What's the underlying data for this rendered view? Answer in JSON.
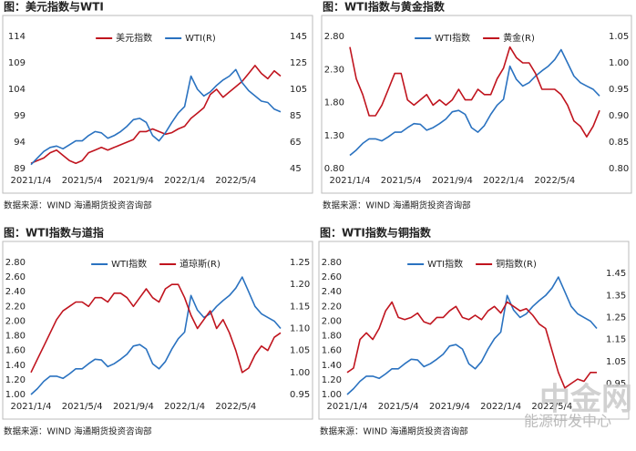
{
  "chart_data": [
    {
      "type": "line",
      "title": "图：美元指数与WTI",
      "note": "数据来源：WIND   海通期货投资咨询部",
      "xticks": [
        {
          "value": 0,
          "label": "2021/1/4"
        },
        {
          "value": 8,
          "label": "2021/5/4"
        },
        {
          "value": 16,
          "label": "2021/9/4"
        },
        {
          "value": 24,
          "label": "2022/1/4"
        },
        {
          "value": 32,
          "label": "2022/5/4"
        }
      ],
      "xlim": [
        0,
        39
      ],
      "ylim": [
        89,
        114
      ],
      "yticks": [
        89,
        94,
        99,
        104,
        109,
        114
      ],
      "y2lim": [
        45,
        145
      ],
      "y2ticks": [
        45,
        65,
        85,
        105,
        125,
        145
      ],
      "series": [
        {
          "name": "美元指数",
          "color": "#c0141e",
          "values": [
            90.0,
            90.5,
            91.0,
            92.0,
            92.5,
            91.5,
            90.5,
            90.0,
            90.5,
            92.0,
            92.5,
            93.0,
            92.5,
            93.0,
            93.5,
            94.0,
            94.5,
            96.0,
            96.0,
            96.5,
            96.0,
            95.5,
            95.8,
            96.5,
            97.0,
            98.5,
            99.5,
            100.5,
            103.0,
            104.0,
            102.5,
            103.5,
            104.5,
            105.5,
            107.0,
            108.5,
            107.0,
            106.0,
            107.5,
            106.5
          ]
        },
        {
          "name": "WTI(R)",
          "color": "#2a72c0",
          "axis": "y2",
          "values": [
            48,
            53,
            58,
            61,
            62,
            60,
            63,
            66,
            66,
            70,
            73,
            72,
            68,
            70,
            73,
            77,
            82,
            83,
            80,
            70,
            66,
            72,
            80,
            87,
            92,
            115,
            105,
            100,
            103,
            108,
            112,
            115,
            120,
            110,
            104,
            100,
            96,
            95,
            90,
            88
          ]
        }
      ]
    },
    {
      "type": "line",
      "title": "图：WTI指数与黄金指数",
      "note": "数据来源：WIND   海通期货投资咨询部",
      "xticks": [
        {
          "value": 0,
          "label": "2021/1/4"
        },
        {
          "value": 8,
          "label": "2021/5/4"
        },
        {
          "value": 16,
          "label": "2021/9/4"
        },
        {
          "value": 24,
          "label": "2022/1/4"
        },
        {
          "value": 32,
          "label": "2022/5/4"
        }
      ],
      "xlim": [
        0,
        39
      ],
      "ylim": [
        0.8,
        2.8
      ],
      "yticks": [
        {
          "value": 0.8,
          "label": "0.80"
        },
        {
          "value": 1.3,
          "label": "1.30"
        },
        {
          "value": 1.8,
          "label": "1.80"
        },
        {
          "value": 2.3,
          "label": "2.30"
        },
        {
          "value": 2.8,
          "label": "2.80"
        }
      ],
      "y2lim": [
        0.8,
        1.05
      ],
      "y2ticks": [
        {
          "value": 0.8,
          "label": "0.80"
        },
        {
          "value": 0.85,
          "label": "0.85"
        },
        {
          "value": 0.9,
          "label": "0.90"
        },
        {
          "value": 0.95,
          "label": "0.95"
        },
        {
          "value": 1,
          "label": "1.00"
        },
        {
          "value": 1.05,
          "label": "1.05"
        }
      ],
      "series": [
        {
          "name": "WTI指数",
          "color": "#2a72c0",
          "values": [
            1.0,
            1.08,
            1.18,
            1.25,
            1.25,
            1.22,
            1.28,
            1.35,
            1.35,
            1.42,
            1.48,
            1.47,
            1.38,
            1.42,
            1.48,
            1.55,
            1.66,
            1.68,
            1.62,
            1.42,
            1.35,
            1.45,
            1.62,
            1.76,
            1.85,
            2.35,
            2.15,
            2.05,
            2.1,
            2.2,
            2.28,
            2.35,
            2.45,
            2.6,
            2.4,
            2.2,
            2.1,
            2.05,
            2.0,
            1.9
          ]
        },
        {
          "name": "黄金(R)",
          "color": "#c0141e",
          "axis": "y2",
          "values": [
            1.03,
            0.97,
            0.94,
            0.9,
            0.9,
            0.92,
            0.95,
            0.98,
            0.98,
            0.93,
            0.92,
            0.93,
            0.94,
            0.92,
            0.93,
            0.92,
            0.93,
            0.95,
            0.93,
            0.93,
            0.95,
            0.94,
            0.94,
            0.97,
            0.99,
            1.03,
            1.01,
            1.0,
            1.0,
            0.98,
            0.95,
            0.95,
            0.95,
            0.94,
            0.92,
            0.89,
            0.88,
            0.86,
            0.88,
            0.91
          ]
        }
      ]
    },
    {
      "type": "line",
      "title": "图：WTI指数与道指",
      "note": "数据来源：WIND   海通期货投资咨询部",
      "xticks": [
        {
          "value": 0,
          "label": "2021/1/4"
        },
        {
          "value": 8,
          "label": "2021/5/4"
        },
        {
          "value": 16,
          "label": "2021/9/4"
        },
        {
          "value": 24,
          "label": "2022/1/4"
        },
        {
          "value": 32,
          "label": "2022/5/4"
        }
      ],
      "xlim": [
        0,
        39
      ],
      "ylim": [
        1,
        2.8
      ],
      "yticks": [
        {
          "value": 1,
          "label": "1.00"
        },
        {
          "value": 1.2,
          "label": "1.20"
        },
        {
          "value": 1.4,
          "label": "1.40"
        },
        {
          "value": 1.6,
          "label": "1.60"
        },
        {
          "value": 1.8,
          "label": "1.80"
        },
        {
          "value": 2,
          "label": "2.00"
        },
        {
          "value": 2.2,
          "label": "2.20"
        },
        {
          "value": 2.4,
          "label": "2.40"
        },
        {
          "value": 2.6,
          "label": "2.60"
        },
        {
          "value": 2.8,
          "label": "2.80"
        }
      ],
      "y2lim": [
        0.95,
        1.25
      ],
      "y2ticks": [
        {
          "value": 0.95,
          "label": "0.95"
        },
        {
          "value": 1,
          "label": "1.00"
        },
        {
          "value": 1.05,
          "label": "1.05"
        },
        {
          "value": 1.1,
          "label": "1.10"
        },
        {
          "value": 1.15,
          "label": "1.15"
        },
        {
          "value": 1.2,
          "label": "1.20"
        },
        {
          "value": 1.25,
          "label": "1.25"
        }
      ],
      "series": [
        {
          "name": "WTI指数",
          "color": "#2a72c0",
          "values": [
            1.0,
            1.08,
            1.18,
            1.25,
            1.25,
            1.22,
            1.28,
            1.35,
            1.35,
            1.42,
            1.48,
            1.47,
            1.38,
            1.42,
            1.48,
            1.55,
            1.66,
            1.68,
            1.62,
            1.42,
            1.35,
            1.45,
            1.62,
            1.76,
            1.85,
            2.35,
            2.15,
            2.05,
            2.1,
            2.2,
            2.28,
            2.35,
            2.45,
            2.6,
            2.4,
            2.2,
            2.1,
            2.05,
            2.0,
            1.9
          ]
        },
        {
          "name": "道琼斯(R)",
          "color": "#c0141e",
          "axis": "y2",
          "values": [
            1.0,
            1.03,
            1.06,
            1.09,
            1.12,
            1.14,
            1.15,
            1.16,
            1.16,
            1.15,
            1.17,
            1.17,
            1.16,
            1.18,
            1.18,
            1.17,
            1.15,
            1.17,
            1.19,
            1.17,
            1.16,
            1.19,
            1.2,
            1.2,
            1.17,
            1.13,
            1.1,
            1.12,
            1.14,
            1.1,
            1.12,
            1.09,
            1.05,
            1.0,
            1.01,
            1.04,
            1.06,
            1.05,
            1.08,
            1.09
          ]
        }
      ]
    },
    {
      "type": "line",
      "title": "图：WTI指数与铜指数",
      "note": "数据来源：WIND   海通期货投资咨询部",
      "xticks": [
        {
          "value": 0,
          "label": "2021/1/4"
        },
        {
          "value": 8,
          "label": "2021/5/4"
        },
        {
          "value": 16,
          "label": "2021/9/4"
        },
        {
          "value": 24,
          "label": "2022/1/4"
        },
        {
          "value": 32,
          "label": "2022/5/4"
        }
      ],
      "xlim": [
        0,
        39
      ],
      "ylim": [
        1,
        2.8
      ],
      "yticks": [
        {
          "value": 1,
          "label": "1.00"
        },
        {
          "value": 1.2,
          "label": "1.20"
        },
        {
          "value": 1.4,
          "label": "1.40"
        },
        {
          "value": 1.6,
          "label": "1.60"
        },
        {
          "value": 1.8,
          "label": "1.80"
        },
        {
          "value": 2,
          "label": "2.00"
        },
        {
          "value": 2.2,
          "label": "2.20"
        },
        {
          "value": 2.4,
          "label": "2.40"
        },
        {
          "value": 2.6,
          "label": "2.60"
        },
        {
          "value": 2.8,
          "label": "2.80"
        }
      ],
      "y2lim": [
        0.9,
        1.5
      ],
      "y2ticks": [
        {
          "value": 0.95,
          "label": "0.95"
        },
        {
          "value": 1.05,
          "label": "1.05"
        },
        {
          "value": 1.15,
          "label": "1.15"
        },
        {
          "value": 1.25,
          "label": "1.25"
        },
        {
          "value": 1.35,
          "label": "1.35"
        },
        {
          "value": 1.45,
          "label": "1.45"
        }
      ],
      "series": [
        {
          "name": "WTI指数",
          "color": "#2a72c0",
          "values": [
            1.0,
            1.08,
            1.18,
            1.25,
            1.25,
            1.22,
            1.28,
            1.35,
            1.35,
            1.42,
            1.48,
            1.47,
            1.38,
            1.42,
            1.48,
            1.55,
            1.66,
            1.68,
            1.62,
            1.42,
            1.35,
            1.45,
            1.62,
            1.76,
            1.85,
            2.35,
            2.15,
            2.05,
            2.1,
            2.2,
            2.28,
            2.35,
            2.45,
            2.6,
            2.4,
            2.2,
            2.1,
            2.05,
            2.0,
            1.9
          ]
        },
        {
          "name": "铜指数(R)",
          "color": "#c0141e",
          "axis": "y2",
          "values": [
            1.0,
            1.02,
            1.15,
            1.18,
            1.15,
            1.2,
            1.28,
            1.32,
            1.25,
            1.24,
            1.25,
            1.27,
            1.23,
            1.22,
            1.25,
            1.25,
            1.28,
            1.3,
            1.25,
            1.24,
            1.26,
            1.24,
            1.28,
            1.3,
            1.27,
            1.32,
            1.3,
            1.28,
            1.29,
            1.26,
            1.22,
            1.2,
            1.1,
            1.0,
            0.93,
            0.95,
            0.97,
            0.96,
            1.0,
            1.0
          ]
        }
      ]
    }
  ],
  "watermark": {
    "logo": "中金网",
    "text": "能源研发中心"
  }
}
